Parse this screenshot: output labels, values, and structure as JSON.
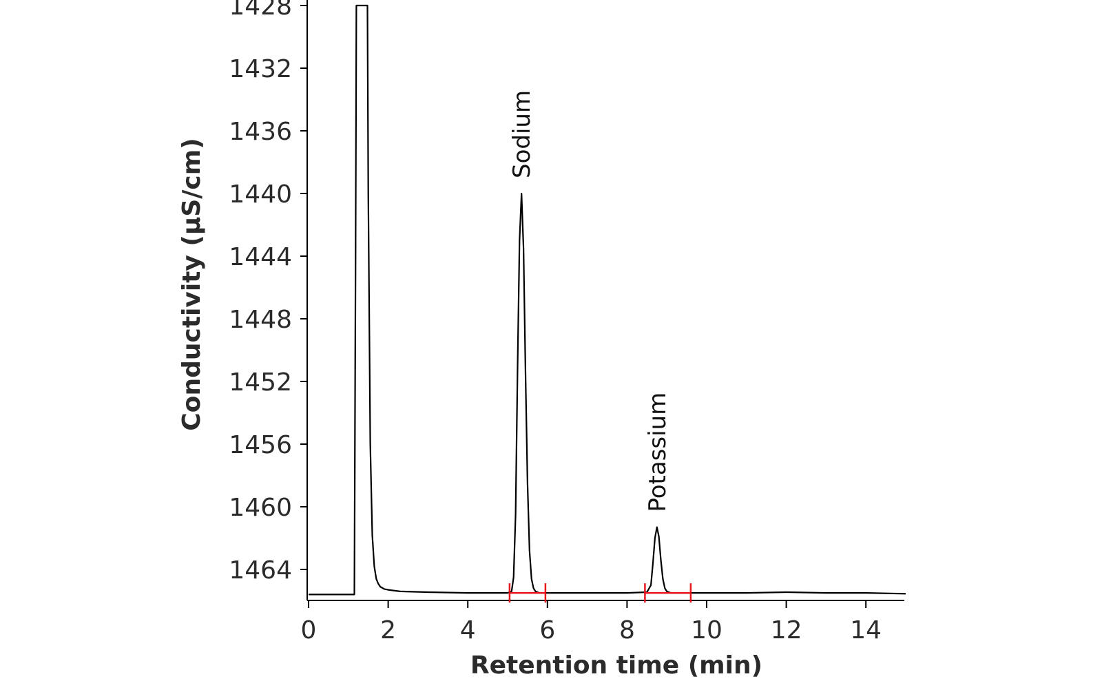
{
  "chart_data": {
    "type": "line",
    "title": "",
    "xlabel": "Retention time (min)",
    "ylabel": "Conductivity (µS/cm)",
    "xlim": [
      0,
      15
    ],
    "ylim": [
      1428,
      1466.5
    ],
    "y_inverted": true,
    "grid": false,
    "x_ticks": [
      0,
      2,
      4,
      6,
      8,
      10,
      12,
      14
    ],
    "y_ticks": [
      1428,
      1432,
      1436,
      1440,
      1444,
      1448,
      1452,
      1456,
      1460,
      1464
    ],
    "line_color": "#000000",
    "range_color": "#e8141c",
    "series": [
      {
        "x": [
          0,
          0.5,
          1.0,
          1.15,
          1.18,
          1.2,
          1.25,
          1.28,
          1.45,
          1.48,
          1.5,
          1.55,
          1.6,
          1.65,
          1.7,
          1.75,
          1.8,
          1.9,
          2.0,
          2.3,
          3.0,
          4.0,
          5.0,
          5.1,
          5.15,
          5.2,
          5.25,
          5.3,
          5.35,
          5.4,
          5.45,
          5.5,
          5.55,
          5.6,
          5.65,
          5.7,
          5.8,
          5.9,
          6.0,
          7.0,
          8.0,
          8.5,
          8.6,
          8.65,
          8.7,
          8.75,
          8.8,
          8.85,
          8.9,
          8.95,
          9.0,
          9.1,
          9.2,
          10.0,
          11.0,
          12.0,
          13.0,
          14.0,
          15.0
        ],
        "y": [
          1465.6,
          1465.6,
          1465.6,
          1465.6,
          1445.0,
          1428.0,
          1428.0,
          1428.0,
          1428.0,
          1428.0,
          1440.0,
          1456.0,
          1461.8,
          1463.8,
          1464.6,
          1464.9,
          1465.1,
          1465.25,
          1465.3,
          1465.4,
          1465.45,
          1465.5,
          1465.5,
          1465.4,
          1464.5,
          1460.5,
          1451.0,
          1443.0,
          1440.0,
          1443.5,
          1451.5,
          1458.5,
          1462.8,
          1464.6,
          1465.2,
          1465.4,
          1465.5,
          1465.5,
          1465.5,
          1465.5,
          1465.5,
          1465.45,
          1465.0,
          1463.6,
          1462.0,
          1461.3,
          1461.9,
          1463.4,
          1464.6,
          1465.2,
          1465.4,
          1465.5,
          1465.5,
          1465.5,
          1465.5,
          1465.45,
          1465.5,
          1465.5,
          1465.55
        ]
      }
    ],
    "annotations": [
      {
        "text": "Sodium",
        "x": 5.35,
        "y": 1440.0,
        "range": [
          5.05,
          5.95
        ]
      },
      {
        "text": "Potassium",
        "x": 8.75,
        "y": 1461.3,
        "range": [
          8.45,
          9.6
        ]
      }
    ]
  }
}
